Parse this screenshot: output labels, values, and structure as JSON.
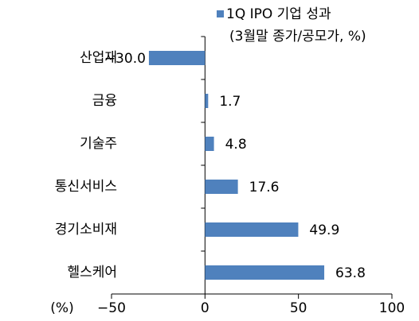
{
  "chart_data": {
    "type": "barh",
    "axis_label": "(%)",
    "legend_note": "(3월말 종가/공모가, %)",
    "categories": [
      "산업재",
      "금융",
      "기술주",
      "통신서비스",
      "경기소비재",
      "헬스케어"
    ],
    "series": [
      {
        "name": "1Q IPO 기업 성과",
        "color": "#4f81bd",
        "values": [
          -30.0,
          1.7,
          4.8,
          17.6,
          49.9,
          63.8
        ],
        "value_labels": [
          "−30.0",
          "1.7",
          "4.8",
          "17.6",
          "49.9",
          "63.8"
        ]
      }
    ],
    "xlim": [
      -50,
      100
    ],
    "xticks": [
      {
        "value": -50,
        "label": "−50"
      },
      0,
      50,
      100
    ],
    "legend": "top-right"
  }
}
